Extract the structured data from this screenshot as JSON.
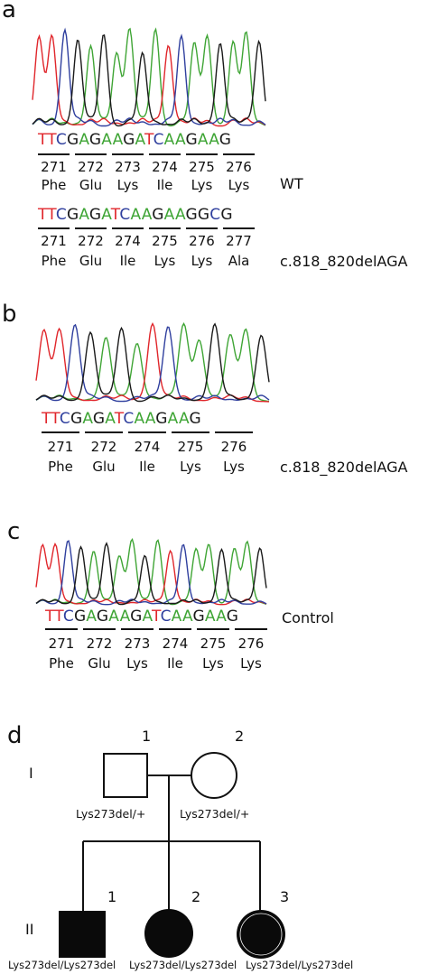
{
  "panels": {
    "a": {
      "letter": "a",
      "wt": {
        "tag": "WT",
        "bases": [
          "T",
          "T",
          "C",
          "G",
          "A",
          "G",
          "A",
          "A",
          "G",
          "A",
          "T",
          "C",
          "A",
          "A",
          "G",
          "A",
          "A",
          "G"
        ],
        "codon_numbers": [
          "271",
          "272",
          "273",
          "274",
          "275",
          "276"
        ],
        "amino_acids": [
          "Phe",
          "Glu",
          "Lys",
          "Ile",
          "Lys",
          "Lys"
        ]
      },
      "mut": {
        "tag": "c.818_820delAGA",
        "bases": [
          "T",
          "T",
          "C",
          "G",
          "A",
          "G",
          "A",
          "T",
          "C",
          "A",
          "A",
          "G",
          "A",
          "A",
          "G",
          "G",
          "C",
          "G"
        ],
        "codon_numbers": [
          "271",
          "272",
          "274",
          "275",
          "276",
          "277"
        ],
        "amino_acids": [
          "Phe",
          "Glu",
          "Ile",
          "Lys",
          "Lys",
          "Ala"
        ]
      }
    },
    "b": {
      "letter": "b",
      "tag": "c.818_820delAGA",
      "bases": [
        "T",
        "T",
        "C",
        "G",
        "A",
        "G",
        "A",
        "T",
        "C",
        "A",
        "A",
        "G",
        "A",
        "A",
        "G"
      ],
      "codon_numbers": [
        "271",
        "272",
        "274",
        "275",
        "276"
      ],
      "amino_acids": [
        "Phe",
        "Glu",
        "Ile",
        "Lys",
        "Lys"
      ]
    },
    "c": {
      "letter": "c",
      "tag": "Control",
      "bases": [
        "T",
        "T",
        "C",
        "G",
        "A",
        "G",
        "A",
        "A",
        "G",
        "A",
        "T",
        "C",
        "A",
        "A",
        "G",
        "A",
        "A",
        "G"
      ],
      "codon_numbers": [
        "271",
        "272",
        "273",
        "274",
        "275",
        "276"
      ],
      "amino_acids": [
        "Phe",
        "Glu",
        "Lys",
        "Ile",
        "Lys",
        "Lys"
      ]
    },
    "d": {
      "letter": "d",
      "generations": [
        "I",
        "II"
      ],
      "gen1": [
        {
          "number": "1",
          "genotype": "Lys273del/+",
          "sex": "male",
          "affected": false
        },
        {
          "number": "2",
          "genotype": "Lys273del/+",
          "sex": "female",
          "affected": false
        }
      ],
      "gen2": [
        {
          "number": "1",
          "genotype": "Lys273del/Lys273del",
          "sex": "male",
          "affected": true
        },
        {
          "number": "2",
          "genotype": "Lys273del/Lys273del",
          "sex": "female",
          "affected": true
        },
        {
          "number": "3",
          "genotype": "Lys273del/Lys273del",
          "sex": "female",
          "affected": true
        }
      ]
    }
  },
  "base_colors": {
    "A": "#3fa535",
    "T": "#e0262b",
    "C": "#2f3f9e",
    "G": "#1a1a1a"
  }
}
